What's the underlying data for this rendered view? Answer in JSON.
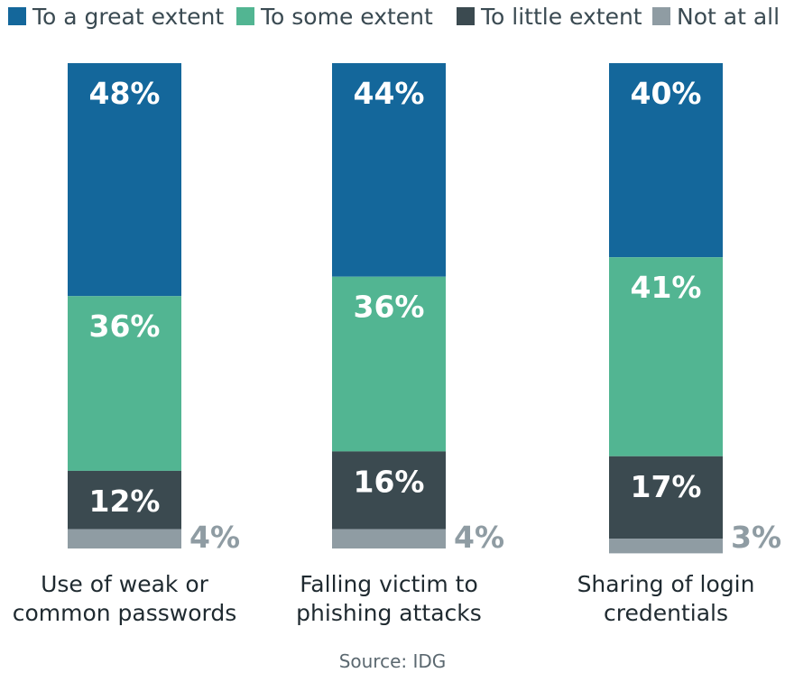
{
  "chart_data": {
    "type": "bar",
    "stacked": true,
    "normalized_percent": true,
    "categories": [
      [
        "Use of weak or",
        "common passwords"
      ],
      [
        "Falling victim to",
        "phishing attacks"
      ],
      [
        "Sharing of login",
        "credentials"
      ]
    ],
    "series": [
      {
        "name": "To a great extent",
        "color": "#14679b",
        "values": [
          48,
          44,
          40
        ]
      },
      {
        "name": "To some extent",
        "color": "#52b592",
        "values": [
          36,
          36,
          41
        ]
      },
      {
        "name": "To little extent",
        "color": "#3b4a50",
        "values": [
          12,
          16,
          17
        ]
      },
      {
        "name": "Not at all",
        "color": "#8f9ca3",
        "values": [
          4,
          4,
          3
        ]
      }
    ],
    "value_suffix": "%",
    "legend_position": "top",
    "ylim": [
      0,
      100
    ],
    "grid": false
  },
  "source": "Source: IDG"
}
